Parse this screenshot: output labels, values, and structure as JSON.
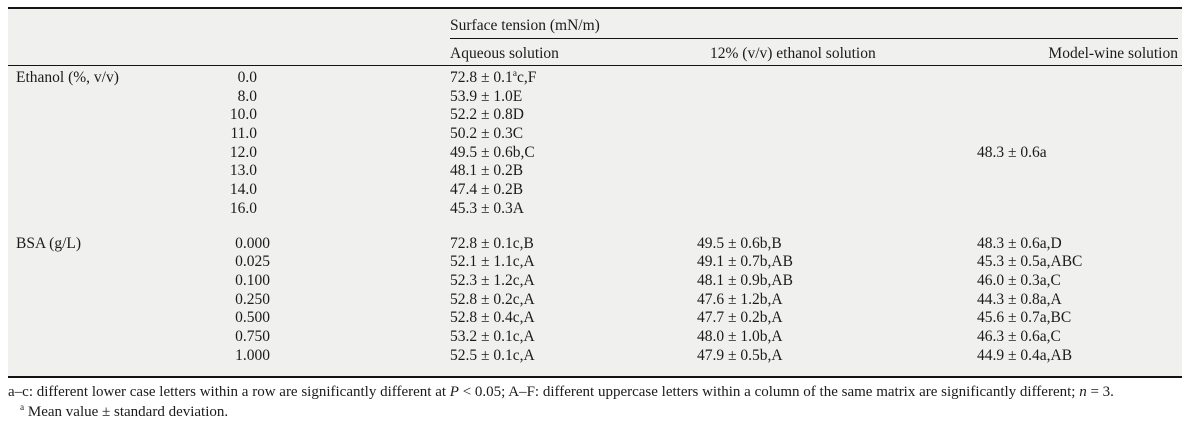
{
  "colors": {
    "table-bg": "#f0f0ee",
    "text-color": "#1b1b1b",
    "rule-color": "#141414"
  },
  "table": {
    "header": {
      "group_title": "Surface tension (mN/m)",
      "columns": [
        "Aqueous solution",
        "12% (v/v) ethanol solution",
        "Model-wine solution"
      ]
    },
    "groups": [
      {
        "label": "Ethanol (%, v/v)",
        "rows": [
          {
            "dose": "0.0",
            "aqueous": [
              {
                "t": "72.8 ± 0.1"
              },
              {
                "t": "a",
                "sup": true
              },
              {
                "t": "c,F"
              }
            ],
            "ethanol12": "",
            "model_wine": ""
          },
          {
            "dose": "8.0",
            "aqueous": "53.9 ± 1.0E",
            "ethanol12": "",
            "model_wine": ""
          },
          {
            "dose": "10.0",
            "aqueous": "52.2 ± 0.8D",
            "ethanol12": "",
            "model_wine": ""
          },
          {
            "dose": "11.0",
            "aqueous": "50.2 ± 0.3C",
            "ethanol12": "",
            "model_wine": ""
          },
          {
            "dose": "12.0",
            "aqueous": "49.5 ± 0.6b,C",
            "ethanol12": "",
            "model_wine": "48.3 ± 0.6a"
          },
          {
            "dose": "13.0",
            "aqueous": "48.1 ± 0.2B",
            "ethanol12": "",
            "model_wine": ""
          },
          {
            "dose": "14.0",
            "aqueous": "47.4 ± 0.2B",
            "ethanol12": "",
            "model_wine": ""
          },
          {
            "dose": "16.0",
            "aqueous": "45.3 ± 0.3A",
            "ethanol12": "",
            "model_wine": ""
          }
        ]
      },
      {
        "label": "BSA (g/L)",
        "rows": [
          {
            "dose": "0.000",
            "aqueous": "72.8 ± 0.1c,B",
            "ethanol12": "49.5 ± 0.6b,B",
            "model_wine": "48.3 ± 0.6a,D"
          },
          {
            "dose": "0.025",
            "aqueous": "52.1 ± 1.1c,A",
            "ethanol12": "49.1 ± 0.7b,AB",
            "model_wine": "45.3 ± 0.5a,ABC"
          },
          {
            "dose": "0.100",
            "aqueous": "52.3 ± 1.2c,A",
            "ethanol12": "48.1 ± 0.9b,AB",
            "model_wine": "46.0 ± 0.3a,C"
          },
          {
            "dose": "0.250",
            "aqueous": "52.8 ± 0.2c,A",
            "ethanol12": "47.6 ± 1.2b,A",
            "model_wine": "44.3 ± 0.8a,A"
          },
          {
            "dose": "0.500",
            "aqueous": "52.8 ± 0.4c,A",
            "ethanol12": "47.7 ± 0.2b,A",
            "model_wine": "45.6 ± 0.7a,BC"
          },
          {
            "dose": "0.750",
            "aqueous": "53.2 ± 0.1c,A",
            "ethanol12": "48.0 ± 1.0b,A",
            "model_wine": "46.3 ± 0.6a,C"
          },
          {
            "dose": "1.000",
            "aqueous": "52.5 ± 0.1c,A",
            "ethanol12": "47.9 ± 0.5b,A",
            "model_wine": "44.9 ± 0.4a,AB"
          }
        ]
      }
    ],
    "footnotes": [
      {
        "segments": [
          {
            "t": "a–c: different lower case letters within a row are significantly different at "
          },
          {
            "t": "P",
            "i": true
          },
          {
            "t": " < 0.05; A–F: different uppercase letters within a column of the same matrix are significantly different; "
          },
          {
            "t": "n",
            "i": true
          },
          {
            "t": " = 3."
          }
        ]
      },
      {
        "segments": [
          {
            "t": "a",
            "sup": true
          },
          {
            "t": " Mean value ± standard deviation."
          }
        ]
      }
    ]
  }
}
